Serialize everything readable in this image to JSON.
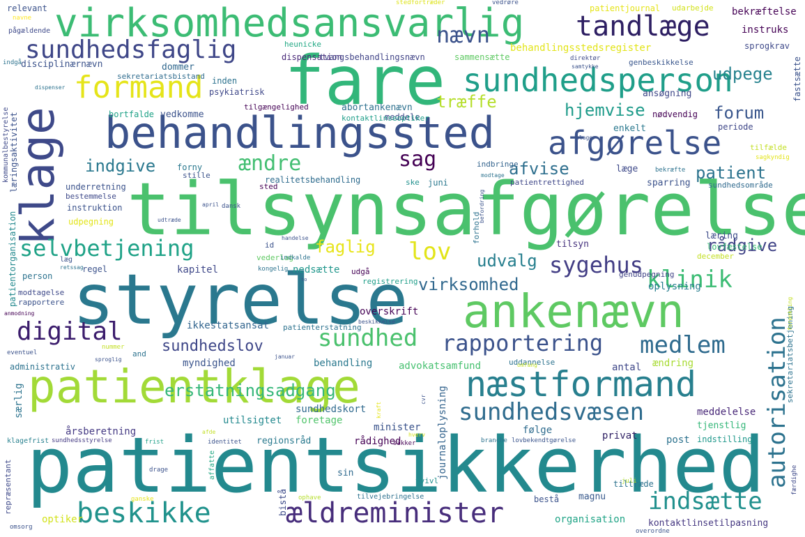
{
  "words": [
    {
      "text": "patientsikkerhed",
      "color": "#23898e"
    },
    {
      "text": "tilsynsafgørelse",
      "color": "#4ac16d"
    },
    {
      "text": "styrelse",
      "color": "#2a788e"
    },
    {
      "text": "fare",
      "color": "#32b67a"
    },
    {
      "text": "behandlingssted",
      "color": "#3b528b"
    },
    {
      "text": "patientklage",
      "color": "#a2da37"
    },
    {
      "text": "virksomhedsansvarlig",
      "color": "#3cbc74"
    },
    {
      "text": "ankenævn",
      "color": "#5ec962"
    },
    {
      "text": "klage",
      "color": "#3e4989"
    },
    {
      "text": "næstformand",
      "color": "#277f8e"
    },
    {
      "text": "sundhedsperson",
      "color": "#1f9e89"
    },
    {
      "text": "afgørelse",
      "color": "#3b528b"
    },
    {
      "text": "formand",
      "color": "#e5e419"
    },
    {
      "text": "tandlæge",
      "color": "#2d1e62"
    },
    {
      "text": "sundhedsfaglig",
      "color": "#3f4788"
    },
    {
      "text": "ældreminister",
      "color": "#472d7b"
    },
    {
      "text": "beskikke",
      "color": "#20928c"
    },
    {
      "text": "selvbetjening",
      "color": "#1fa287"
    },
    {
      "text": "digital",
      "color": "#3b1c6c"
    },
    {
      "text": "sundhedsvæsen",
      "color": "#2f6c8e"
    },
    {
      "text": "sundhed",
      "color": "#4ac16d"
    },
    {
      "text": "rapportering",
      "color": "#3b528b"
    },
    {
      "text": "autorisation",
      "color": "#2c728e"
    },
    {
      "text": "medlem",
      "color": "#2f6b8e"
    },
    {
      "text": "indsætte",
      "color": "#21908d"
    },
    {
      "text": "sygehus",
      "color": "#433e85"
    },
    {
      "text": "klinik",
      "color": "#3cbc74"
    },
    {
      "text": "lov",
      "color": "#e2e418"
    },
    {
      "text": "nævn",
      "color": "#3b528b"
    },
    {
      "text": "sag",
      "color": "#440154"
    },
    {
      "text": "ændre",
      "color": "#42be71"
    },
    {
      "text": "erstatningsadgang",
      "color": "#35b779"
    },
    {
      "text": "udpege",
      "color": "#26828e"
    },
    {
      "text": "indgive",
      "color": "#2a788e"
    },
    {
      "text": "afvise",
      "color": "#2e6f8e"
    },
    {
      "text": "træffe",
      "color": "#b5de2b"
    },
    {
      "text": "hjemvise",
      "color": "#1e9b8a"
    },
    {
      "text": "forum",
      "color": "#39568c"
    },
    {
      "text": "patient",
      "color": "#2c738e"
    },
    {
      "text": "rådgive",
      "color": "#414487"
    },
    {
      "text": "faglig",
      "color": "#e7e419"
    },
    {
      "text": "udvalg",
      "color": "#277f8e"
    },
    {
      "text": "virksomhed",
      "color": "#31688e"
    },
    {
      "text": "sundhedslov",
      "color": "#3f4788"
    },
    {
      "text": "tilsyn",
      "color": "#46327e"
    },
    {
      "text": "læring",
      "color": "#3e4c8a"
    },
    {
      "text": "lovfæstelse",
      "color": "#3bbb75"
    },
    {
      "text": "kapitel",
      "color": "#3f4889"
    },
    {
      "text": "nedsætte",
      "color": "#1f968b"
    },
    {
      "text": "oplysning",
      "color": "#277e8e"
    },
    {
      "text": "ikkestatsansat",
      "color": "#32658e"
    },
    {
      "text": "overskrift",
      "color": "#440154"
    },
    {
      "text": "myndighed",
      "color": "#3a548c"
    },
    {
      "text": "behandling",
      "color": "#2a788e"
    },
    {
      "text": "advokatsamfund",
      "color": "#46c06f"
    },
    {
      "text": "antal",
      "color": "#3f4788"
    },
    {
      "text": "ændring",
      "color": "#a8db34"
    },
    {
      "text": "sundhedskort",
      "color": "#306a8e"
    },
    {
      "text": "meddelelse",
      "color": "#482878"
    },
    {
      "text": "tjenstlig",
      "color": "#35b779"
    },
    {
      "text": "minister",
      "color": "#3a538b"
    },
    {
      "text": "følge",
      "color": "#2f6c8e"
    },
    {
      "text": "privat",
      "color": "#2d1e62"
    },
    {
      "text": "post",
      "color": "#2c728e"
    },
    {
      "text": "indstilling",
      "color": "#1f988b"
    },
    {
      "text": "regionsråd",
      "color": "#29798e"
    },
    {
      "text": "rådighed",
      "color": "#440154"
    },
    {
      "text": "journaloplysning",
      "color": "#33638d"
    },
    {
      "text": "årsberetning",
      "color": "#443983"
    },
    {
      "text": "utilsigtet",
      "color": "#23898e"
    },
    {
      "text": "foretage",
      "color": "#50c46a"
    },
    {
      "text": "særlig",
      "color": "#2c738e"
    },
    {
      "text": "organisation",
      "color": "#20a486"
    },
    {
      "text": "kontaktlinsetilpasning",
      "color": "#453781"
    },
    {
      "text": "optiker",
      "color": "#d2e21b"
    },
    {
      "text": "bestå",
      "color": "#3b528b"
    },
    {
      "text": "magnu",
      "color": "#38598c"
    },
    {
      "text": "tiltræde",
      "color": "#2c728e"
    },
    {
      "text": "sin",
      "color": "#306a8e"
    },
    {
      "text": "bistå",
      "color": "#3e4c8a"
    },
    {
      "text": "tvivl",
      "color": "#21908d"
    },
    {
      "text": "tilvejebringelse",
      "color": "#2d708e"
    },
    {
      "text": "ophave",
      "color": "#b5de2b"
    },
    {
      "text": "juli",
      "color": "#b5de2b"
    },
    {
      "text": "repræsentant",
      "color": "#3e4989"
    },
    {
      "text": "omsorg",
      "color": "#3b528b"
    },
    {
      "text": "klagefrist",
      "color": "#27808e"
    },
    {
      "text": "sundhedsstyrelse",
      "color": "#443a83"
    },
    {
      "text": "frist",
      "color": "#1fa088"
    },
    {
      "text": "identitet",
      "color": "#3b528b"
    },
    {
      "text": "sikker",
      "color": "#440154"
    },
    {
      "text": "branche",
      "color": "#2c728e"
    },
    {
      "text": "lovbekendtgørelse",
      "color": "#3a548c"
    },
    {
      "text": "ganske",
      "color": "#e5e419"
    },
    {
      "text": "drage",
      "color": "#3b528b"
    },
    {
      "text": "affatte",
      "color": "#22a884"
    },
    {
      "text": "afde",
      "color": "#c2df23"
    },
    {
      "text": "hverv",
      "color": "#d8e219"
    },
    {
      "text": "kraft",
      "color": "#e5e419"
    },
    {
      "text": "overordne",
      "color": "#3b528b"
    },
    {
      "text": "færdighe",
      "color": "#3e4989"
    },
    {
      "text": "relevant",
      "color": "#3b528b"
    },
    {
      "text": "navne",
      "color": "#fde725"
    },
    {
      "text": "pågældende",
      "color": "#3e4989"
    },
    {
      "text": "indgå",
      "color": "#2c728e"
    },
    {
      "text": "disciplinærnævn",
      "color": "#3b528b"
    },
    {
      "text": "dommer",
      "color": "#31688e"
    },
    {
      "text": "sekretariatsbistand",
      "color": "#2f6c8e"
    },
    {
      "text": "heunicke",
      "color": "#22a884"
    },
    {
      "text": "dispensation",
      "color": "#482878"
    },
    {
      "text": "tvangsbehandlingsnævn",
      "color": "#414487"
    },
    {
      "text": "sammensætte",
      "color": "#5ec962"
    },
    {
      "text": "behandlingsstedsregister",
      "color": "#e2e418"
    },
    {
      "text": "stedfortræder",
      "color": "#dde318"
    },
    {
      "text": "vedrøre",
      "color": "#3b528b"
    },
    {
      "text": "patientjournal",
      "color": "#e5e419"
    },
    {
      "text": "udarbejde",
      "color": "#d2e21b"
    },
    {
      "text": "bekræftelse",
      "color": "#440154"
    },
    {
      "text": "instruks",
      "color": "#440154"
    },
    {
      "text": "sprogkrav",
      "color": "#3e4989"
    },
    {
      "text": "genbeskikkelse",
      "color": "#39568c"
    },
    {
      "text": "direktør",
      "color": "#3e4989"
    },
    {
      "text": "samtykke",
      "color": "#3b528b"
    },
    {
      "text": "fastsætte",
      "color": "#3b528b"
    },
    {
      "text": "ansøgning",
      "color": "#3f4788"
    },
    {
      "text": "nødvendig",
      "color": "#440154"
    },
    {
      "text": "periode",
      "color": "#3f4788"
    },
    {
      "text": "enkelt",
      "color": "#2a788e"
    },
    {
      "text": "klager",
      "color": "#3b528b"
    },
    {
      "text": "tilfælde",
      "color": "#c2df23"
    },
    {
      "text": "sagkyndig",
      "color": "#e2e418"
    },
    {
      "text": "bekræfte",
      "color": "#2c728e"
    },
    {
      "text": "sundhedsområde",
      "color": "#306a8e"
    },
    {
      "text": "læge",
      "color": "#3e4989"
    },
    {
      "text": "sparring",
      "color": "#3b528b"
    },
    {
      "text": "patientrettighed",
      "color": "#3f4788"
    },
    {
      "text": "indbringe",
      "color": "#33638d"
    },
    {
      "text": "modtage",
      "color": "#2c728e"
    },
    {
      "text": "meddele",
      "color": "#3e4989"
    },
    {
      "text": "kontaktlinseoptiker",
      "color": "#1f9e89"
    },
    {
      "text": "abortankenævn",
      "color": "#2d708e"
    },
    {
      "text": "tilgængelighed",
      "color": "#440154"
    },
    {
      "text": "bortfalde",
      "color": "#1fa287"
    },
    {
      "text": "vedkomme",
      "color": "#3b528b"
    },
    {
      "text": "psykiatrisk",
      "color": "#3f4889"
    },
    {
      "text": "inden",
      "color": "#2c728e"
    },
    {
      "text": "læringsaktivitet",
      "color": "#3b528b"
    },
    {
      "text": "kommunalbestyrelse",
      "color": "#3e4989"
    },
    {
      "text": "dispenser",
      "color": "#2c728e"
    },
    {
      "text": "forny",
      "color": "#2a788e"
    },
    {
      "text": "stille",
      "color": "#3b528b"
    },
    {
      "text": "sted",
      "color": "#440154"
    },
    {
      "text": "realitetsbehandling",
      "color": "#2f6c8e"
    },
    {
      "text": "juni",
      "color": "#2a788e"
    },
    {
      "text": "ske",
      "color": "#21908d"
    },
    {
      "text": "underretning",
      "color": "#3b528b"
    },
    {
      "text": "bestemmelse",
      "color": "#3e4989"
    },
    {
      "text": "instruktion",
      "color": "#3b528b"
    },
    {
      "text": "udpegning",
      "color": "#e2e418"
    },
    {
      "text": "april",
      "color": "#3b528b"
    },
    {
      "text": "dansk",
      "color": "#3b528b"
    },
    {
      "text": "udtræde",
      "color": "#3b528b"
    },
    {
      "text": "forhold",
      "color": "#2c728e"
    },
    {
      "text": "befordring",
      "color": "#3b528b"
    },
    {
      "text": "patientorganisation",
      "color": "#23898e"
    },
    {
      "text": "handelse",
      "color": "#3b528b"
    },
    {
      "text": "id",
      "color": "#3b528b"
    },
    {
      "text": "vederlag",
      "color": "#5ec962"
    },
    {
      "text": "indkalde",
      "color": "#2c728e"
    },
    {
      "text": "kongelig",
      "color": "#2c728e"
    },
    {
      "text": "udgå",
      "color": "#440154"
    },
    {
      "text": "registrering",
      "color": "#1f9e89"
    },
    {
      "text": "genudpegning",
      "color": "#414487"
    },
    {
      "text": "december",
      "color": "#c2df23"
    },
    {
      "text": "retssag",
      "color": "#2c728e"
    },
    {
      "text": "læg",
      "color": "#3b528b"
    },
    {
      "text": "regel",
      "color": "#3b528b"
    },
    {
      "text": "person",
      "color": "#2c728e"
    },
    {
      "text": "modtagelse",
      "color": "#3e4989"
    },
    {
      "text": "rapportere",
      "color": "#3b528b"
    },
    {
      "text": "anmodning",
      "color": "#440154"
    },
    {
      "text": "eventuel",
      "color": "#3b528b"
    },
    {
      "text": "administrativ",
      "color": "#2c728e"
    },
    {
      "text": "nummer",
      "color": "#c2df23"
    },
    {
      "text": "sproglig",
      "color": "#3b528b"
    },
    {
      "text": "and",
      "color": "#2c728e"
    },
    {
      "text": "to",
      "color": "#3b528b"
    },
    {
      "text": "patienterstatning",
      "color": "#2c728e"
    },
    {
      "text": "beskikkelse",
      "color": "#3b528b"
    },
    {
      "text": "januar",
      "color": "#3b528b"
    },
    {
      "text": "uddannelse",
      "color": "#2c728e"
    },
    {
      "text": "omfang",
      "color": "#c2df23"
    },
    {
      "text": "cvr",
      "color": "#3b528b"
    },
    {
      "text": "sekretariatsbetjening",
      "color": "#2c728e"
    },
    {
      "text": "forenkling",
      "color": "#c2df23"
    }
  ]
}
